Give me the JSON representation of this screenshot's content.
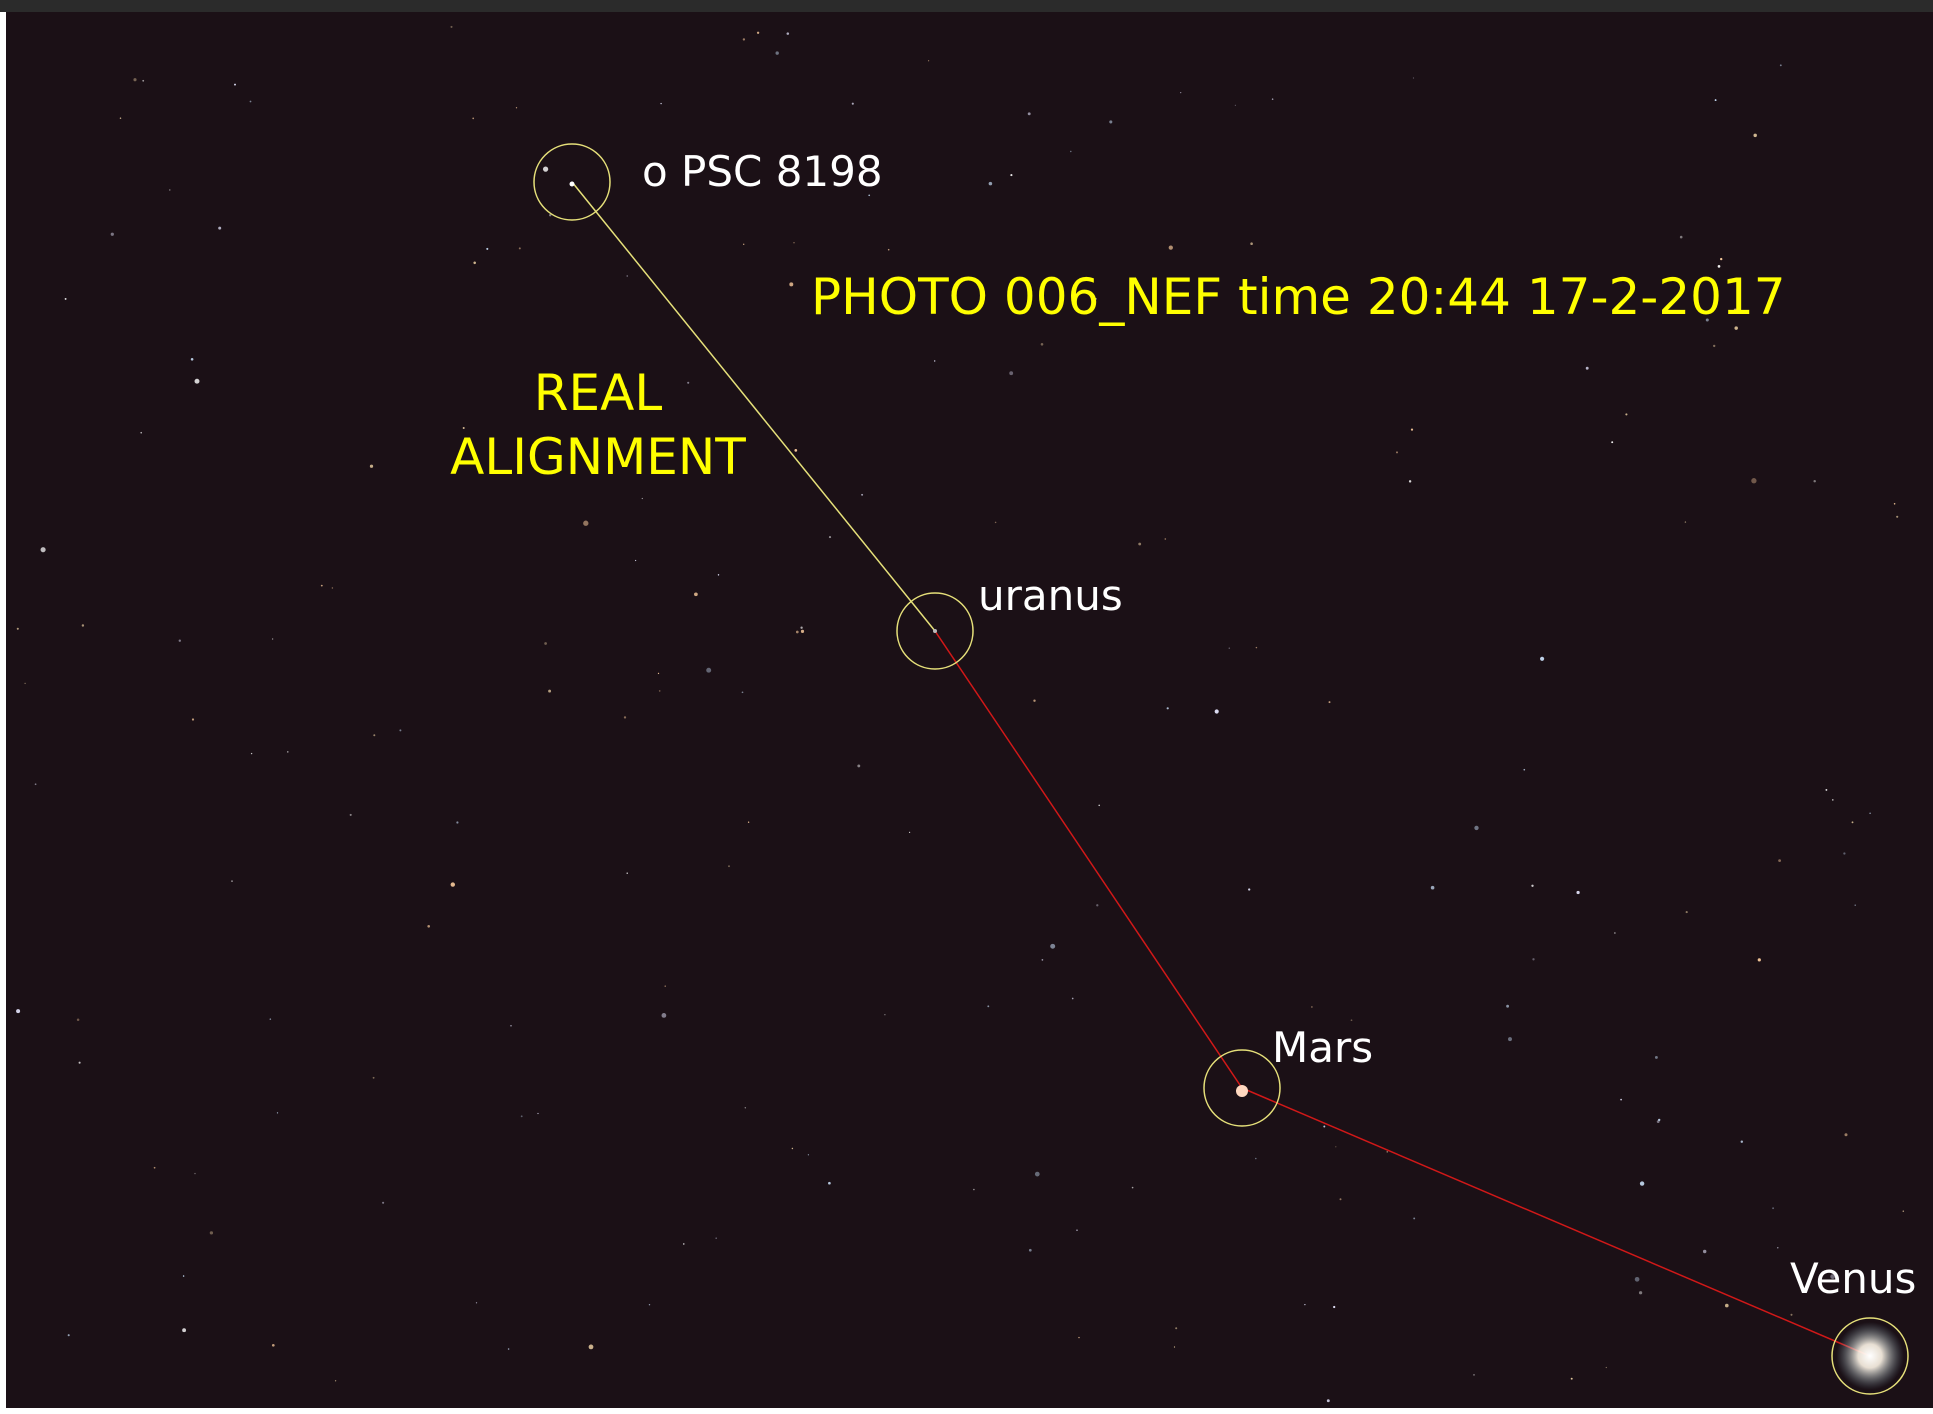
{
  "title": "PHOTO 006_NEF time 20:44 17-2-2017",
  "annotation": [
    "REAL",
    "ALIGNMENT"
  ],
  "objects": [
    {
      "label": "o PSC 8198"
    },
    {
      "label": "uranus"
    },
    {
      "label": "Mars"
    },
    {
      "label": "Venus"
    }
  ]
}
